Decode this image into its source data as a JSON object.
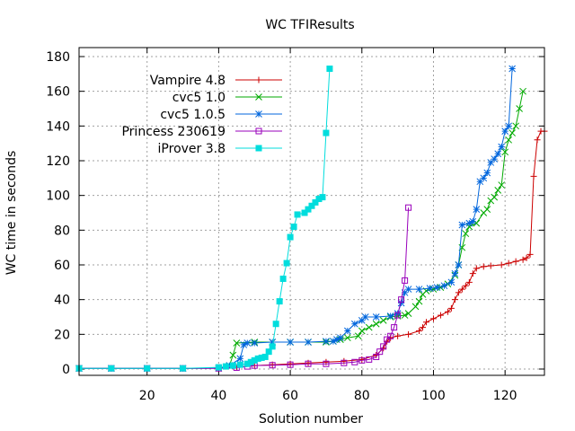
{
  "chart_data": {
    "type": "line",
    "title": "WC TFIResults",
    "xlabel": "Solution number",
    "ylabel": "WC time in seconds",
    "xlim": [
      1,
      131
    ],
    "ylim": [
      0,
      180
    ],
    "xticks": [
      20,
      40,
      60,
      80,
      100,
      120
    ],
    "yticks": [
      0,
      20,
      40,
      60,
      80,
      100,
      120,
      140,
      160,
      180
    ],
    "grid": true,
    "legend_position": "top-left",
    "series": [
      {
        "name": "Vampire 4.8",
        "color": "#cc0000",
        "marker": "plus",
        "points": [
          [
            1,
            0.4
          ],
          [
            10,
            0.4
          ],
          [
            20,
            0.4
          ],
          [
            30,
            0.4
          ],
          [
            40,
            0.5
          ],
          [
            45,
            1.0
          ],
          [
            50,
            2.0
          ],
          [
            55,
            2.5
          ],
          [
            60,
            3.0
          ],
          [
            65,
            3.5
          ],
          [
            70,
            4.0
          ],
          [
            75,
            4.5
          ],
          [
            80,
            5.5
          ],
          [
            84,
            8.0
          ],
          [
            86,
            12.0
          ],
          [
            87,
            16.0
          ],
          [
            88,
            18.0
          ],
          [
            90,
            19.0
          ],
          [
            93,
            20.0
          ],
          [
            96,
            22.0
          ],
          [
            97,
            24.0
          ],
          [
            98,
            27.0
          ],
          [
            100,
            29.0
          ],
          [
            102,
            31.0
          ],
          [
            104,
            33.0
          ],
          [
            105,
            35.0
          ],
          [
            106,
            40.0
          ],
          [
            107,
            44.0
          ],
          [
            108,
            46.0
          ],
          [
            109,
            48.0
          ],
          [
            110,
            50.0
          ],
          [
            111,
            55.0
          ],
          [
            112,
            58.0
          ],
          [
            114,
            59.0
          ],
          [
            116,
            59.5
          ],
          [
            119,
            60.0
          ],
          [
            121,
            61.0
          ],
          [
            123,
            62.0
          ],
          [
            125,
            63.0
          ],
          [
            126,
            64.0
          ],
          [
            127,
            66.0
          ],
          [
            128,
            111.0
          ],
          [
            129,
            132.0
          ],
          [
            130,
            137.0
          ],
          [
            131,
            137.0
          ]
        ]
      },
      {
        "name": "cvc5 1.0",
        "color": "#00aa00",
        "marker": "cross",
        "points": [
          [
            1,
            0.4
          ],
          [
            10,
            0.4
          ],
          [
            20,
            0.4
          ],
          [
            30,
            0.4
          ],
          [
            40,
            0.5
          ],
          [
            43,
            2.0
          ],
          [
            44,
            8.0
          ],
          [
            45,
            15.0
          ],
          [
            50,
            15.5
          ],
          [
            55,
            15.5
          ],
          [
            60,
            15.5
          ],
          [
            65,
            15.5
          ],
          [
            70,
            15.5
          ],
          [
            72,
            16.0
          ],
          [
            74,
            17.0
          ],
          [
            76,
            18.0
          ],
          [
            79,
            19.0
          ],
          [
            80,
            22.0
          ],
          [
            82,
            24.0
          ],
          [
            84,
            26.0
          ],
          [
            86,
            28.0
          ],
          [
            88,
            30.0
          ],
          [
            90,
            30.5
          ],
          [
            92,
            31.0
          ],
          [
            93,
            32.0
          ],
          [
            95,
            36.0
          ],
          [
            96,
            39.0
          ],
          [
            97,
            43.0
          ],
          [
            98,
            45.0
          ],
          [
            100,
            46.0
          ],
          [
            102,
            47.0
          ],
          [
            104,
            49.0
          ],
          [
            106,
            54.0
          ],
          [
            107,
            60.0
          ],
          [
            108,
            70.0
          ],
          [
            109,
            78.0
          ],
          [
            110,
            82.0
          ],
          [
            112,
            84.0
          ],
          [
            114,
            90.0
          ],
          [
            115,
            92.0
          ],
          [
            116,
            97.0
          ],
          [
            117,
            99.0
          ],
          [
            118,
            103.0
          ],
          [
            119,
            106.0
          ],
          [
            120,
            125.0
          ],
          [
            121,
            132.0
          ],
          [
            122,
            136.0
          ],
          [
            123,
            140.0
          ],
          [
            124,
            150.0
          ],
          [
            125,
            160.0
          ]
        ]
      },
      {
        "name": "cvc5 1.0.5",
        "color": "#0066dd",
        "marker": "star",
        "points": [
          [
            1,
            0.4
          ],
          [
            10,
            0.4
          ],
          [
            20,
            0.4
          ],
          [
            30,
            0.4
          ],
          [
            40,
            0.5
          ],
          [
            43,
            2.0
          ],
          [
            46,
            6.0
          ],
          [
            47,
            14.0
          ],
          [
            48,
            15.0
          ],
          [
            50,
            15.0
          ],
          [
            55,
            15.5
          ],
          [
            60,
            15.5
          ],
          [
            65,
            15.5
          ],
          [
            70,
            16.0
          ],
          [
            72,
            16.0
          ],
          [
            73,
            17.0
          ],
          [
            74,
            18.0
          ],
          [
            76,
            22.0
          ],
          [
            78,
            26.0
          ],
          [
            80,
            28.0
          ],
          [
            81,
            30.0
          ],
          [
            84,
            30.0
          ],
          [
            88,
            30.5
          ],
          [
            90,
            32.0
          ],
          [
            91,
            38.0
          ],
          [
            92,
            44.0
          ],
          [
            93,
            46.0
          ],
          [
            96,
            46.0
          ],
          [
            99,
            46.5
          ],
          [
            101,
            47.0
          ],
          [
            103,
            48.0
          ],
          [
            105,
            50.0
          ],
          [
            106,
            55.0
          ],
          [
            107,
            60.0
          ],
          [
            108,
            83.0
          ],
          [
            110,
            84.0
          ],
          [
            111,
            85.0
          ],
          [
            112,
            92.0
          ],
          [
            113,
            108.0
          ],
          [
            114,
            110.0
          ],
          [
            115,
            113.0
          ],
          [
            116,
            119.0
          ],
          [
            117,
            121.0
          ],
          [
            118,
            124.0
          ],
          [
            119,
            128.0
          ],
          [
            120,
            137.0
          ],
          [
            121,
            140.0
          ],
          [
            122,
            173.0
          ]
        ]
      },
      {
        "name": "Princess 230619",
        "color": "#9900bb",
        "marker": "square",
        "points": [
          [
            1,
            0.4
          ],
          [
            10,
            0.4
          ],
          [
            20,
            0.4
          ],
          [
            30,
            0.4
          ],
          [
            40,
            0.4
          ],
          [
            45,
            0.8
          ],
          [
            48,
            1.5
          ],
          [
            50,
            2.0
          ],
          [
            55,
            2.2
          ],
          [
            60,
            2.5
          ],
          [
            65,
            3.0
          ],
          [
            70,
            3.0
          ],
          [
            75,
            3.5
          ],
          [
            78,
            4.0
          ],
          [
            80,
            5.0
          ],
          [
            82,
            5.5
          ],
          [
            84,
            7.0
          ],
          [
            85,
            10.0
          ],
          [
            86,
            13.0
          ],
          [
            87,
            17.0
          ],
          [
            88,
            19.0
          ],
          [
            89,
            24.0
          ],
          [
            90,
            31.0
          ],
          [
            91,
            40.0
          ],
          [
            92,
            51.0
          ],
          [
            93,
            93.0
          ]
        ]
      },
      {
        "name": "iProver 3.8",
        "color": "#00dddd",
        "marker": "filled-square",
        "points": [
          [
            1,
            0.4
          ],
          [
            10,
            0.4
          ],
          [
            20,
            0.4
          ],
          [
            30,
            0.4
          ],
          [
            40,
            1.0
          ],
          [
            42,
            1.5
          ],
          [
            44,
            2.0
          ],
          [
            46,
            2.5
          ],
          [
            48,
            3.0
          ],
          [
            49,
            4.0
          ],
          [
            50,
            5.0
          ],
          [
            51,
            6.0
          ],
          [
            52,
            6.5
          ],
          [
            53,
            7.0
          ],
          [
            54,
            10.0
          ],
          [
            55,
            13.0
          ],
          [
            56,
            26.0
          ],
          [
            57,
            39.0
          ],
          [
            58,
            52.0
          ],
          [
            59,
            61.0
          ],
          [
            60,
            76.0
          ],
          [
            61,
            82.0
          ],
          [
            62,
            89.0
          ],
          [
            64,
            90.0
          ],
          [
            65,
            92.0
          ],
          [
            66,
            94.0
          ],
          [
            67,
            96.0
          ],
          [
            68,
            98.0
          ],
          [
            69,
            99.0
          ],
          [
            70,
            136.0
          ],
          [
            71,
            173.0
          ]
        ]
      }
    ]
  }
}
